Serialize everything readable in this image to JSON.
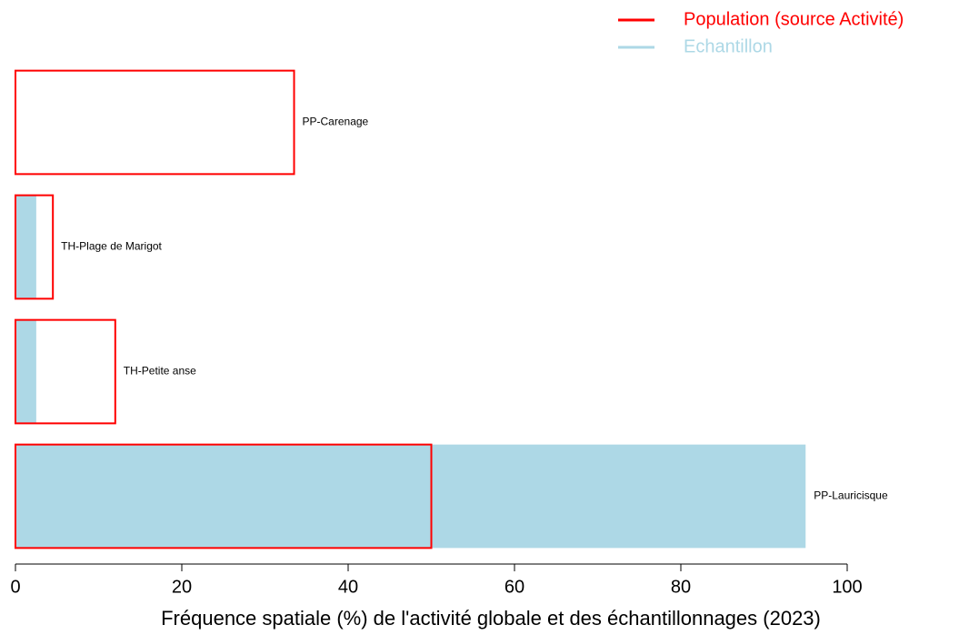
{
  "chart_data": {
    "type": "bar",
    "orientation": "horizontal",
    "x_label": "Fréquence spatiale (%) de l'activité globale et des échantillonnages (2023)",
    "categories": [
      "PP-Carenage",
      "TH-Plage de Marigot",
      "TH-Petite anse",
      "PP-Lauricisque"
    ],
    "series": [
      {
        "name": "Population (source Activité)",
        "color": "#ff0000",
        "style": "outline",
        "values": [
          33.5,
          4.5,
          12,
          50
        ]
      },
      {
        "name": "Echantillon",
        "color": "#add8e6",
        "style": "fill",
        "values": [
          0,
          2.5,
          2.5,
          95
        ]
      }
    ],
    "xlim": [
      0,
      100
    ],
    "xticks": [
      0,
      20,
      40,
      60,
      80,
      100
    ],
    "legend": "top-right"
  }
}
